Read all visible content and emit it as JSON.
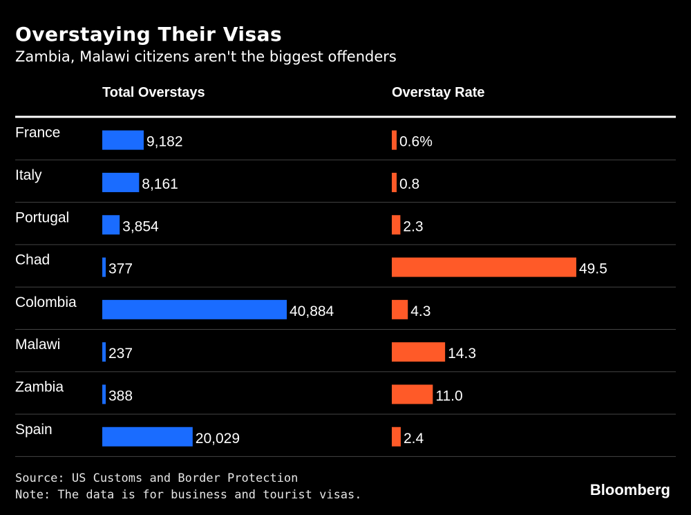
{
  "title": "Overstaying Their Visas",
  "subtitle": "Zambia, Malawi citizens aren't the biggest offenders",
  "columns": {
    "total": "Total Overstays",
    "rate": "Overstay Rate"
  },
  "source": "Source: US Customs and Border Protection",
  "note": "Note: The data is for business and tourist visas.",
  "brand": "Bloomberg",
  "colors": {
    "total": "#1a6cff",
    "rate": "#ff5a28",
    "background": "#000000",
    "divider": "#444444"
  },
  "chart_data": {
    "type": "bar",
    "categories": [
      "France",
      "Italy",
      "Portugal",
      "Chad",
      "Colombia",
      "Malawi",
      "Zambia",
      "Spain"
    ],
    "series": [
      {
        "name": "Total Overstays",
        "values": [
          9182,
          8161,
          3854,
          377,
          40884,
          237,
          388,
          20029
        ],
        "labels": [
          "9,182",
          "8,161",
          "3,854",
          "377",
          "40,884",
          "237",
          "388",
          "20,029"
        ]
      },
      {
        "name": "Overstay Rate",
        "values": [
          0.6,
          0.8,
          2.3,
          49.5,
          4.3,
          14.3,
          11.0,
          2.4
        ],
        "labels": [
          "0.6%",
          "0.8",
          "2.3",
          "49.5",
          "4.3",
          "14.3",
          "11.0",
          "2.4"
        ]
      }
    ]
  }
}
